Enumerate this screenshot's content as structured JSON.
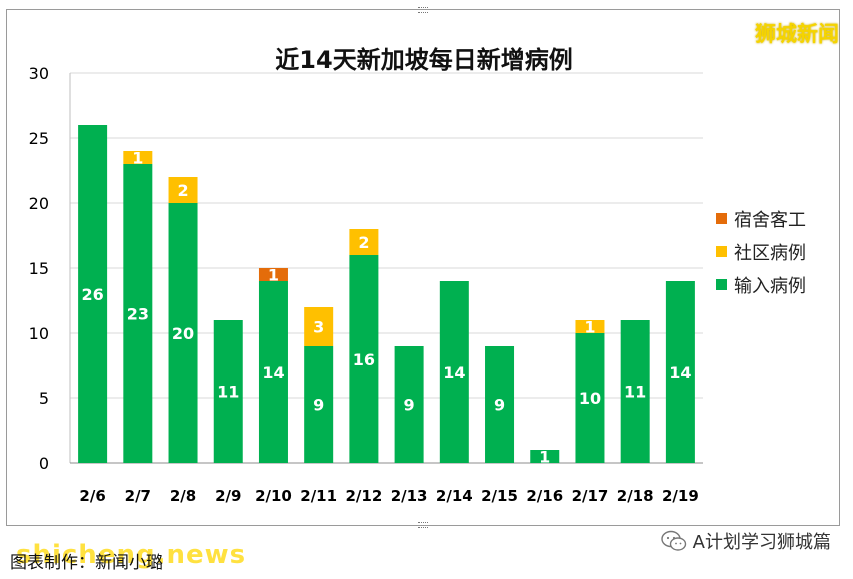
{
  "header": {
    "brand": "狮城新闻"
  },
  "footer": {
    "credit": "图表制作：新闻小璐",
    "watermark": "shicheng.news",
    "account": "A计划学习狮城篇",
    "account_icon": "wechat-icon"
  },
  "colors": {
    "import": "#00b050",
    "community": "#ffc000",
    "dorm": "#e46c0a",
    "grid": "#d9d9d9",
    "axis_text": "#000000"
  },
  "chart_data": {
    "type": "bar",
    "stacked": true,
    "title": "近14天新加坡每日新增病例",
    "categories": [
      "2/6",
      "2/7",
      "2/8",
      "2/9",
      "2/10",
      "2/11",
      "2/12",
      "2/13",
      "2/14",
      "2/15",
      "2/16",
      "2/17",
      "2/18",
      "2/19"
    ],
    "series": [
      {
        "name": "输入病例",
        "values": [
          26,
          23,
          20,
          11,
          14,
          9,
          16,
          9,
          14,
          9,
          1,
          10,
          11,
          14
        ]
      },
      {
        "name": "社区病例",
        "values": [
          0,
          1,
          2,
          0,
          0,
          3,
          2,
          0,
          0,
          0,
          0,
          1,
          0,
          0
        ]
      },
      {
        "name": "宿舍客工",
        "values": [
          0,
          0,
          0,
          0,
          1,
          0,
          0,
          0,
          0,
          0,
          0,
          0,
          0,
          0
        ]
      }
    ],
    "ylim": [
      0,
      30
    ],
    "yticks": [
      0,
      5,
      10,
      15,
      20,
      25,
      30
    ],
    "grid": true,
    "legend_position": "right",
    "legend_order": [
      "宿舍客工",
      "社区病例",
      "输入病例"
    ]
  }
}
